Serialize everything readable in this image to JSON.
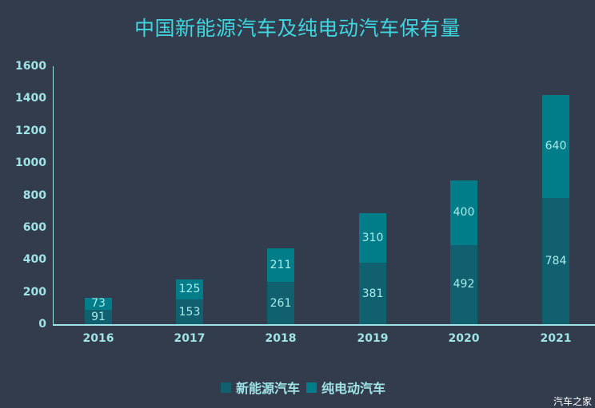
{
  "title": "中国新能源汽车及纯电动汽车保有量",
  "watermark": "汽车之家",
  "legend": [
    {
      "label": "新能源汽车",
      "color": "#10606f"
    },
    {
      "label": "纯电动汽车",
      "color": "#007d89"
    }
  ],
  "yticks": [
    "0",
    "200",
    "400",
    "600",
    "800",
    "1000",
    "1200",
    "1400",
    "1600"
  ],
  "xticks": [
    "2016",
    "2017",
    "2018",
    "2019",
    "2020",
    "2021"
  ],
  "colors": {
    "background": "#323c4d",
    "title": "#3fd6e0",
    "axis": "#9fe3e6",
    "nev": "#10606f",
    "bev": "#007d89"
  },
  "chart_data": {
    "type": "bar",
    "stacked": true,
    "title": "中国新能源汽车及纯电动汽车保有量",
    "categories": [
      "2016",
      "2017",
      "2018",
      "2019",
      "2020",
      "2021"
    ],
    "series": [
      {
        "name": "新能源汽车",
        "values": [
          91,
          153,
          261,
          381,
          492,
          784
        ]
      },
      {
        "name": "纯电动汽车",
        "values": [
          73,
          125,
          211,
          310,
          400,
          640
        ]
      }
    ],
    "xlabel": "",
    "ylabel": "",
    "ylim": [
      0,
      1600
    ],
    "yticks": [
      0,
      200,
      400,
      600,
      800,
      1000,
      1200,
      1400,
      1600
    ],
    "grid": false,
    "legend_position": "bottom"
  }
}
